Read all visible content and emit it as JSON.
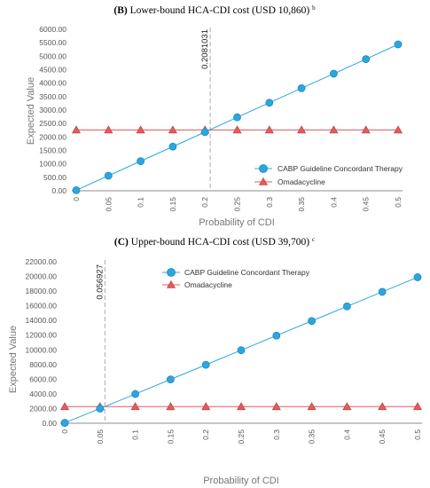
{
  "chart_data": [
    {
      "type": "line",
      "title_label": "(B)",
      "title_text": "Lower-bound HCA-CDI cost (USD 10,860)",
      "title_sup": "b",
      "xlabel": "Probability of CDI",
      "ylabel": "Expected Value",
      "x": [
        0,
        0.05,
        0.1,
        0.15,
        0.2,
        0.25,
        0.3,
        0.35,
        0.4,
        0.45,
        0.5
      ],
      "x_tick_labels": [
        "0",
        "0.05",
        "0.1",
        "0.15",
        "0.2",
        "0.25",
        "0.3",
        "0.35",
        "0.4",
        "0.45",
        "0.5"
      ],
      "ylim": [
        0,
        6000
      ],
      "y_ticks": [
        0,
        500,
        1000,
        1500,
        2000,
        2500,
        3000,
        3500,
        4000,
        4500,
        5000,
        5500,
        6000
      ],
      "y_tick_labels": [
        "0.00",
        "500.00",
        "1000.00",
        "1500.00",
        "2000.00",
        "2500.00",
        "3000.00",
        "3500.00",
        "4000.00",
        "4500.00",
        "5000.00",
        "5500.00",
        "6000.00"
      ],
      "grid": false,
      "legend_position": "bottom-right",
      "series": [
        {
          "name": "CABP Guideline Concordant Therapy",
          "color": "#29a8e0",
          "marker": "circle",
          "values": [
            20,
            560,
            1100,
            1640,
            2180,
            2730,
            3270,
            3810,
            4350,
            4890,
            5440
          ]
        },
        {
          "name": "Omadacycline",
          "color": "#e85a5a",
          "marker": "triangle",
          "values": [
            2260,
            2260,
            2260,
            2260,
            2260,
            2260,
            2260,
            2260,
            2260,
            2260,
            2260
          ]
        }
      ],
      "threshold": {
        "x": 0.2081031,
        "label": "0.2081031"
      }
    },
    {
      "type": "line",
      "title_label": "(C)",
      "title_text": "Upper-bound HCA-CDI cost (USD 39,700)",
      "title_sup": "c",
      "xlabel": "Probability of CDI",
      "ylabel": "Expected Value",
      "x": [
        0,
        0.05,
        0.1,
        0.15,
        0.2,
        0.25,
        0.3,
        0.35,
        0.4,
        0.45,
        0.5
      ],
      "x_tick_labels": [
        "0",
        "0.05",
        "0.1",
        "0.15",
        "0.2",
        "0.25",
        "0.3",
        "0.35",
        "0.4",
        "0.45",
        "0.5"
      ],
      "ylim": [
        0,
        22000
      ],
      "y_ticks": [
        0,
        2000,
        4000,
        6000,
        8000,
        10000,
        12000,
        14000,
        16000,
        18000,
        20000,
        22000
      ],
      "y_tick_labels": [
        "0.00",
        "2000.00",
        "4000.00",
        "6000.00",
        "8000.00",
        "10000.00",
        "12000.00",
        "14000.00",
        "16000.00",
        "18000.00",
        "20000.00",
        "22000.00"
      ],
      "grid": false,
      "legend_position": "top-right",
      "series": [
        {
          "name": "CABP Guideline Concordant Therapy",
          "color": "#29a8e0",
          "marker": "circle",
          "values": [
            50,
            2000,
            3980,
            5970,
            7960,
            9950,
            11940,
            13930,
            15920,
            17900,
            19890
          ]
        },
        {
          "name": "Omadacycline",
          "color": "#e85a5a",
          "marker": "triangle",
          "values": [
            2260,
            2260,
            2260,
            2260,
            2260,
            2260,
            2260,
            2260,
            2260,
            2260,
            2260
          ]
        }
      ],
      "threshold": {
        "x": 0.056927,
        "label": "0.056927"
      }
    }
  ]
}
